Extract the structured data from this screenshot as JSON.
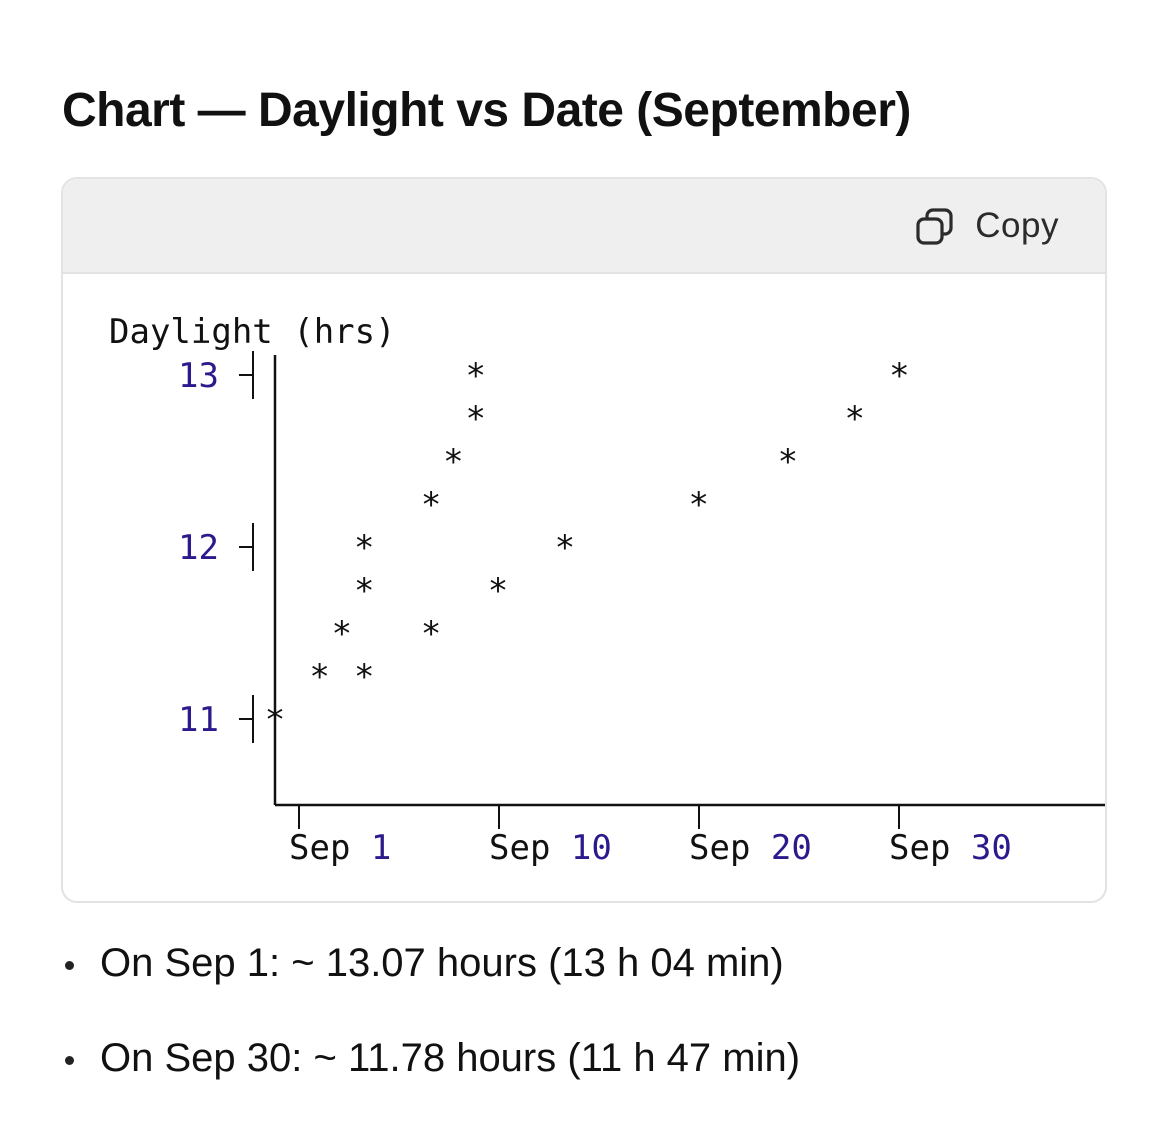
{
  "heading": "Chart — Daylight vs Date (September)",
  "code_block": {
    "copy_label": "Copy",
    "copy_icon": "copy-icon"
  },
  "chart_data": {
    "type": "scatter",
    "ylabel": "Daylight (hrs)",
    "y_ticks": [
      "13",
      "12",
      "11"
    ],
    "x_ticks": [
      {
        "prefix": "Sep",
        "day": "1"
      },
      {
        "prefix": "Sep",
        "day": "10"
      },
      {
        "prefix": "Sep",
        "day": "20"
      },
      {
        "prefix": "Sep",
        "day": "30"
      }
    ],
    "marker": "*",
    "x_unit": "date (September, day of month)",
    "xlim": [
      0,
      40
    ],
    "ylim": [
      10.5,
      13
    ],
    "points": [
      {
        "x": 0,
        "y": 11.0
      },
      {
        "x": 2,
        "y": 11.25
      },
      {
        "x": 3,
        "y": 11.5
      },
      {
        "x": 4,
        "y": 11.25
      },
      {
        "x": 4,
        "y": 11.75
      },
      {
        "x": 4,
        "y": 12.0
      },
      {
        "x": 7,
        "y": 11.5
      },
      {
        "x": 7,
        "y": 12.25
      },
      {
        "x": 8,
        "y": 12.5
      },
      {
        "x": 9,
        "y": 12.75
      },
      {
        "x": 9,
        "y": 13.0
      },
      {
        "x": 10,
        "y": 11.75
      },
      {
        "x": 13,
        "y": 12.0
      },
      {
        "x": 19,
        "y": 12.25
      },
      {
        "x": 23,
        "y": 12.5
      },
      {
        "x": 26,
        "y": 12.75
      },
      {
        "x": 28,
        "y": 13.0
      }
    ],
    "colors": {
      "tick_number": "#2a1a8c",
      "text": "#111111",
      "axis": "#111111"
    }
  },
  "bullets": [
    "On Sep 1: ~ 13.07 hours (13 h 04 min)",
    "On Sep 30: ~ 11.78 hours (11 h 47 min)"
  ]
}
